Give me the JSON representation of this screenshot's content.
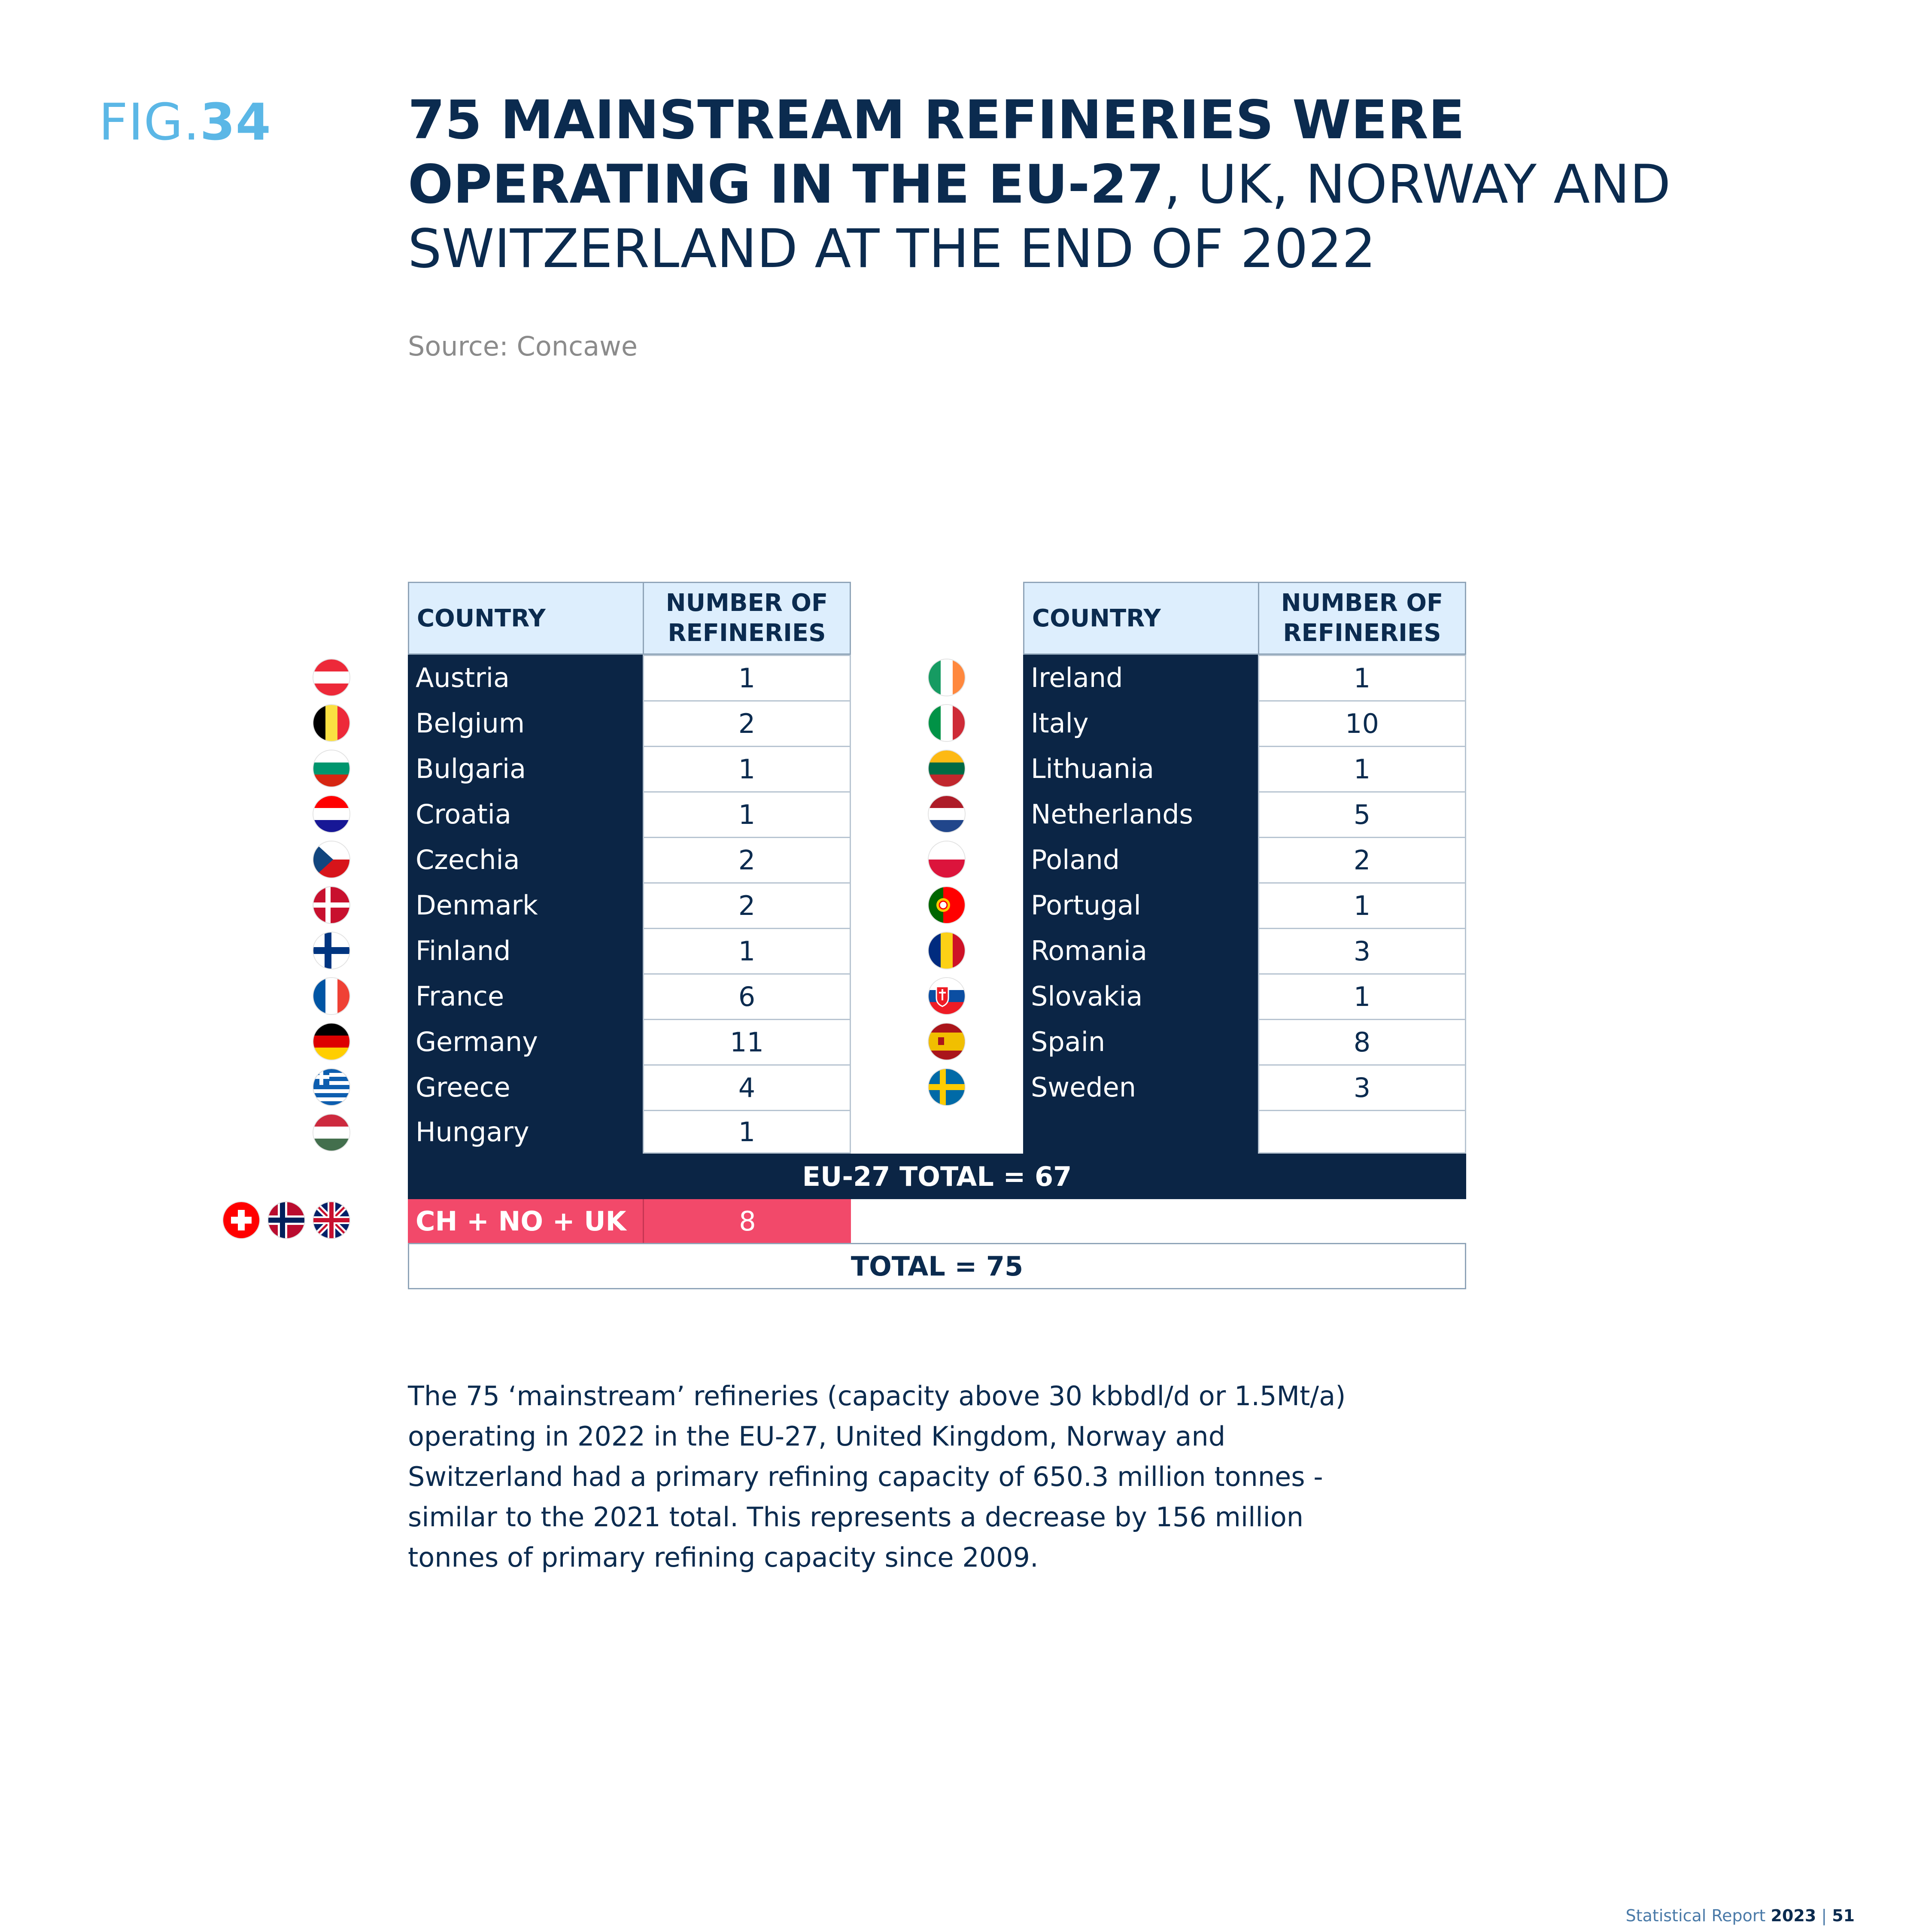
{
  "figure": {
    "label_prefix": "FIG.",
    "label_number": "34",
    "title_bold": "75 MAINSTREAM REFINERIES WERE OPERATING IN THE EU-27",
    "title_rest": ", UK, NORWAY AND SWITZERLAND AT THE END OF 2022",
    "source": "Source: Concawe"
  },
  "table": {
    "header_country": "COUNTRY",
    "header_number": "NUMBER OF REFINERIES",
    "left": [
      {
        "country": "Austria",
        "value": "1",
        "flag": "austria-flag-icon"
      },
      {
        "country": "Belgium",
        "value": "2",
        "flag": "belgium-flag-icon"
      },
      {
        "country": "Bulgaria",
        "value": "1",
        "flag": "bulgaria-flag-icon"
      },
      {
        "country": "Croatia",
        "value": "1",
        "flag": "croatia-flag-icon"
      },
      {
        "country": "Czechia",
        "value": "2",
        "flag": "czechia-flag-icon"
      },
      {
        "country": "Denmark",
        "value": "2",
        "flag": "denmark-flag-icon"
      },
      {
        "country": "Finland",
        "value": "1",
        "flag": "finland-flag-icon"
      },
      {
        "country": "France",
        "value": "6",
        "flag": "france-flag-icon"
      },
      {
        "country": "Germany",
        "value": "11",
        "flag": "germany-flag-icon"
      },
      {
        "country": "Greece",
        "value": "4",
        "flag": "greece-flag-icon"
      },
      {
        "country": "Hungary",
        "value": "1",
        "flag": "hungary-flag-icon"
      }
    ],
    "right": [
      {
        "country": "Ireland",
        "value": "1",
        "flag": "ireland-flag-icon"
      },
      {
        "country": "Italy",
        "value": "10",
        "flag": "italy-flag-icon"
      },
      {
        "country": "Lithuania",
        "value": "1",
        "flag": "lithuania-flag-icon"
      },
      {
        "country": "Netherlands",
        "value": "5",
        "flag": "netherlands-flag-icon"
      },
      {
        "country": "Poland",
        "value": "2",
        "flag": "poland-flag-icon"
      },
      {
        "country": "Portugal",
        "value": "1",
        "flag": "portugal-flag-icon"
      },
      {
        "country": "Romania",
        "value": "3",
        "flag": "romania-flag-icon"
      },
      {
        "country": "Slovakia",
        "value": "1",
        "flag": "slovakia-flag-icon"
      },
      {
        "country": "Spain",
        "value": "8",
        "flag": "spain-flag-icon"
      },
      {
        "country": "Sweden",
        "value": "3",
        "flag": "sweden-flag-icon"
      }
    ],
    "eu_total": "EU-27 TOTAL = 67",
    "non_eu_label": "CH + NO + UK",
    "non_eu_value": "8",
    "grand_total": "TOTAL = 75"
  },
  "body_text": "The 75 ‘mainstream’ refineries (capacity above 30 kbbdl/d or 1.5Mt/a) operating in 2022 in the EU-27, United Kingdom, Norway and Switzerland had a primary refining capacity of 650.3 million tonnes - similar to the 2021 total. This represents a decrease by 156 million tonnes of primary refining capacity since 2009.",
  "footer": {
    "report": "Statistical Report ",
    "year": "2023",
    "separator": " | ",
    "page": "51"
  },
  "colors": {
    "navy": "#0b2545",
    "header_blue": "#ddeefd",
    "accent_blue": "#5bb7e6",
    "pink": "#f2496a"
  }
}
